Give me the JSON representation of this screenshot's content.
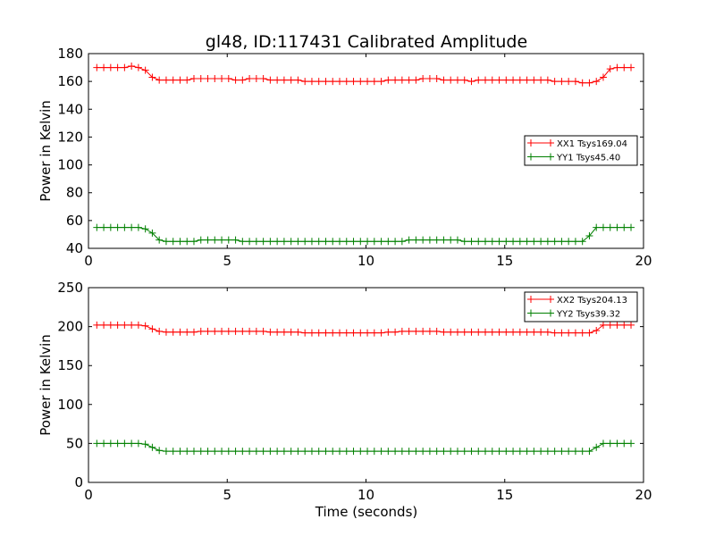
{
  "figure": {
    "title": "gl48, ID:117431 Calibrated Amplitude",
    "xlabel": "Time (seconds)"
  },
  "colors": {
    "red": "#ff0000",
    "green": "#008000",
    "axes": "#000000",
    "background": "#ffffff"
  },
  "chart_data": [
    {
      "type": "line",
      "title": "gl48, ID:117431 Calibrated Amplitude",
      "xlabel": "",
      "ylabel": "Power in Kelvin",
      "xlim": [
        0,
        20
      ],
      "ylim": [
        40,
        180
      ],
      "x_ticks": [
        "0",
        "5",
        "10",
        "15",
        "20"
      ],
      "y_ticks": [
        "40",
        "60",
        "80",
        "100",
        "120",
        "140",
        "160",
        "180"
      ],
      "grid": false,
      "legend_position": "center-right",
      "marker": "+",
      "x": [
        0.3,
        0.55,
        0.8,
        1.05,
        1.3,
        1.55,
        1.8,
        2.05,
        2.3,
        2.55,
        2.8,
        3.05,
        3.3,
        3.55,
        3.8,
        4.05,
        4.3,
        4.55,
        4.8,
        5.05,
        5.3,
        5.55,
        5.8,
        6.05,
        6.3,
        6.55,
        6.8,
        7.05,
        7.3,
        7.55,
        7.8,
        8.05,
        8.3,
        8.55,
        8.8,
        9.05,
        9.3,
        9.55,
        9.8,
        10.05,
        10.3,
        10.55,
        10.8,
        11.05,
        11.3,
        11.55,
        11.8,
        12.05,
        12.3,
        12.55,
        12.8,
        13.05,
        13.3,
        13.55,
        13.8,
        14.05,
        14.3,
        14.55,
        14.8,
        15.05,
        15.3,
        15.55,
        15.8,
        16.05,
        16.3,
        16.55,
        16.8,
        17.05,
        17.3,
        17.55,
        17.8,
        18.05,
        18.3,
        18.55,
        18.8,
        19.05,
        19.3,
        19.55
      ],
      "series": [
        {
          "name": "XX1 Tsys169.04",
          "color": "#ff0000",
          "values": [
            170,
            170,
            170,
            170,
            170,
            171,
            170,
            168,
            163,
            161,
            161,
            161,
            161,
            161,
            162,
            162,
            162,
            162,
            162,
            162,
            161,
            161,
            162,
            162,
            162,
            161,
            161,
            161,
            161,
            161,
            160,
            160,
            160,
            160,
            160,
            160,
            160,
            160,
            160,
            160,
            160,
            160,
            161,
            161,
            161,
            161,
            161,
            162,
            162,
            162,
            161,
            161,
            161,
            161,
            160,
            161,
            161,
            161,
            161,
            161,
            161,
            161,
            161,
            161,
            161,
            161,
            160,
            160,
            160,
            160,
            159,
            159,
            160,
            163,
            169,
            170,
            170,
            170
          ]
        },
        {
          "name": "YY1 Tsys45.40",
          "color": "#008000",
          "values": [
            55,
            55,
            55,
            55,
            55,
            55,
            55,
            54,
            51,
            46,
            45,
            45,
            45,
            45,
            45,
            46,
            46,
            46,
            46,
            46,
            46,
            45,
            45,
            45,
            45,
            45,
            45,
            45,
            45,
            45,
            45,
            45,
            45,
            45,
            45,
            45,
            45,
            45,
            45,
            45,
            45,
            45,
            45,
            45,
            45,
            46,
            46,
            46,
            46,
            46,
            46,
            46,
            46,
            45,
            45,
            45,
            45,
            45,
            45,
            45,
            45,
            45,
            45,
            45,
            45,
            45,
            45,
            45,
            45,
            45,
            45,
            49,
            55,
            55,
            55,
            55,
            55,
            55
          ]
        }
      ]
    },
    {
      "type": "line",
      "title": "",
      "xlabel": "Time (seconds)",
      "ylabel": "Power in Kelvin",
      "xlim": [
        0,
        20
      ],
      "ylim": [
        0,
        250
      ],
      "x_ticks": [
        "0",
        "5",
        "10",
        "15",
        "20"
      ],
      "y_ticks": [
        "0",
        "50",
        "100",
        "150",
        "200",
        "250"
      ],
      "grid": false,
      "legend_position": "top-right",
      "marker": "+",
      "x": [
        0.3,
        0.55,
        0.8,
        1.05,
        1.3,
        1.55,
        1.8,
        2.05,
        2.3,
        2.55,
        2.8,
        3.05,
        3.3,
        3.55,
        3.8,
        4.05,
        4.3,
        4.55,
        4.8,
        5.05,
        5.3,
        5.55,
        5.8,
        6.05,
        6.3,
        6.55,
        6.8,
        7.05,
        7.3,
        7.55,
        7.8,
        8.05,
        8.3,
        8.55,
        8.8,
        9.05,
        9.3,
        9.55,
        9.8,
        10.05,
        10.3,
        10.55,
        10.8,
        11.05,
        11.3,
        11.55,
        11.8,
        12.05,
        12.3,
        12.55,
        12.8,
        13.05,
        13.3,
        13.55,
        13.8,
        14.05,
        14.3,
        14.55,
        14.8,
        15.05,
        15.3,
        15.55,
        15.8,
        16.05,
        16.3,
        16.55,
        16.8,
        17.05,
        17.3,
        17.55,
        17.8,
        18.05,
        18.3,
        18.55,
        18.8,
        19.05,
        19.3,
        19.55
      ],
      "series": [
        {
          "name": "XX2 Tsys204.13",
          "color": "#ff0000",
          "values": [
            202,
            202,
            202,
            202,
            202,
            202,
            202,
            201,
            197,
            194,
            193,
            193,
            193,
            193,
            193,
            194,
            194,
            194,
            194,
            194,
            194,
            194,
            194,
            194,
            194,
            193,
            193,
            193,
            193,
            193,
            192,
            192,
            192,
            192,
            192,
            192,
            192,
            192,
            192,
            192,
            192,
            192,
            193,
            193,
            194,
            194,
            194,
            194,
            194,
            194,
            193,
            193,
            193,
            193,
            193,
            193,
            193,
            193,
            193,
            193,
            193,
            193,
            193,
            193,
            193,
            193,
            192,
            192,
            192,
            192,
            192,
            192,
            195,
            202,
            202,
            202,
            202,
            202
          ]
        },
        {
          "name": "YY2 Tsys39.32",
          "color": "#008000",
          "values": [
            50,
            50,
            50,
            50,
            50,
            50,
            50,
            49,
            45,
            41,
            40,
            40,
            40,
            40,
            40,
            40,
            40,
            40,
            40,
            40,
            40,
            40,
            40,
            40,
            40,
            40,
            40,
            40,
            40,
            40,
            40,
            40,
            40,
            40,
            40,
            40,
            40,
            40,
            40,
            40,
            40,
            40,
            40,
            40,
            40,
            40,
            40,
            40,
            40,
            40,
            40,
            40,
            40,
            40,
            40,
            40,
            40,
            40,
            40,
            40,
            40,
            40,
            40,
            40,
            40,
            40,
            40,
            40,
            40,
            40,
            40,
            40,
            45,
            50,
            50,
            50,
            50,
            50
          ]
        }
      ]
    }
  ]
}
